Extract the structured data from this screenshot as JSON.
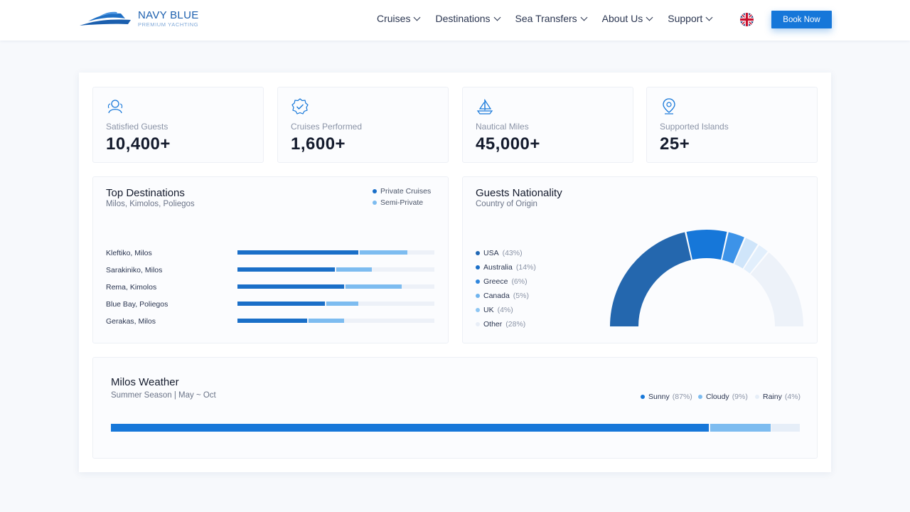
{
  "header": {
    "logo_name": "NAVY BLUE",
    "logo_tag": "PREMIUM YACHTING",
    "nav": [
      {
        "label": "Cruises"
      },
      {
        "label": "Destinations"
      },
      {
        "label": "Sea Transfers"
      },
      {
        "label": "About Us"
      },
      {
        "label": "Support"
      }
    ],
    "language_icon": "uk-flag-icon",
    "book_label": "Book Now"
  },
  "stats": [
    {
      "label": "Satisfied Guests",
      "value": "10,400+",
      "icon": "user-icon"
    },
    {
      "label": "Cruises Performed",
      "value": "1,600+",
      "icon": "badge-check-icon"
    },
    {
      "label": "Nautical Miles",
      "value": "45,000+",
      "icon": "sailboat-icon"
    },
    {
      "label": "Supported Islands",
      "value": "25+",
      "icon": "map-pin-icon"
    }
  ],
  "colors": {
    "primary": "#1677d9",
    "dark": "#1f67b5",
    "light": "#7dbcf0",
    "pale": "#cfe5fa",
    "track": "#edf1f8"
  },
  "destinations": {
    "title": "Top Destinations",
    "subtitle": "Milos, Kimolos, Poliegos",
    "legend": [
      "Private Cruises",
      "Semi-Private"
    ],
    "chart_data": {
      "type": "bar",
      "orientation": "horizontal",
      "stacked": true,
      "categories": [
        "Kleftiko, Milos",
        "Sarakiniko, Milos",
        "Rema, Kimolos",
        "Blue Bay, Poliegos",
        "Gerakas, Milos"
      ],
      "series": [
        {
          "name": "Private Cruises",
          "values": [
            62,
            50,
            55,
            45,
            36
          ]
        },
        {
          "name": "Semi-Private",
          "values": [
            25,
            19,
            29,
            17,
            19
          ]
        }
      ],
      "xlim": [
        0,
        100
      ]
    }
  },
  "nationality": {
    "title": "Guests Nationality",
    "subtitle": "Country of Origin",
    "chart_data": {
      "type": "pie",
      "variant": "semi-donut",
      "slices": [
        {
          "label": "USA",
          "pct_label": "(43%)",
          "value": 43
        },
        {
          "label": "Australia",
          "pct_label": "(14%)",
          "value": 14
        },
        {
          "label": "Greece",
          "pct_label": "(6%)",
          "value": 6
        },
        {
          "label": "Canada",
          "pct_label": "(5%)",
          "value": 5
        },
        {
          "label": "UK",
          "pct_label": "(4%)",
          "value": 4
        },
        {
          "label": "Other",
          "pct_label": "(28%)",
          "value": 28
        }
      ],
      "slice_colors": [
        "#2467ae",
        "#1677d9",
        "#3d93e8",
        "#cfe5fa",
        "#e2effc",
        "#edf2f9"
      ],
      "dot_colors": [
        "#1f67b5",
        "#1a6fc8",
        "#2f86dd",
        "#6fb4ee",
        "#8ec6f3",
        "#e8eef7"
      ]
    }
  },
  "weather": {
    "title": "Milos Weather",
    "subtitle": "Summer Season | May ~ Oct",
    "chart_data": {
      "type": "bar",
      "orientation": "horizontal",
      "stacked": true,
      "categories": [
        "Milos"
      ],
      "series": [
        {
          "name": "Sunny",
          "pct_label": "(87%)",
          "values": [
            87
          ]
        },
        {
          "name": "Cloudy",
          "pct_label": "(9%)",
          "values": [
            9
          ]
        },
        {
          "name": "Rainy",
          "pct_label": "(4%)",
          "values": [
            4
          ]
        }
      ]
    }
  }
}
